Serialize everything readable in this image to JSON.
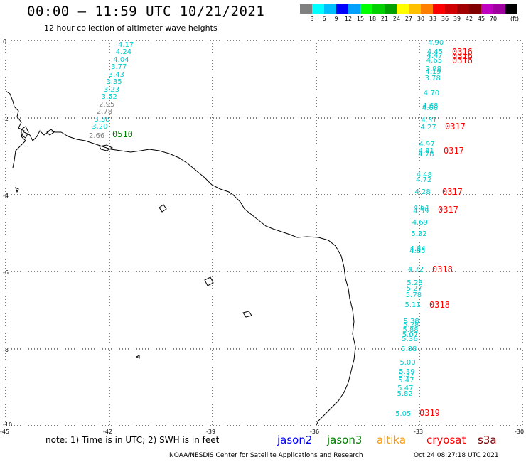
{
  "header": {
    "title": "00:00 – 11:59 UTC 10/21/2021",
    "subtitle": "12 hour collection of altimeter wave heights"
  },
  "legend": {
    "unit": "(ft)",
    "colors": [
      "#808080",
      "#00ffff",
      "#00bfff",
      "#0000ff",
      "#00a0ff",
      "#00ff00",
      "#00d000",
      "#00a000",
      "#ffff00",
      "#ffc000",
      "#ff8000",
      "#ff0000",
      "#d00000",
      "#a00000",
      "#800000",
      "#c000c0",
      "#a000a0",
      "#000000"
    ],
    "labels": [
      "3",
      "6",
      "9",
      "12",
      "15",
      "18",
      "21",
      "24",
      "27",
      "30",
      "33",
      "36",
      "39",
      "42",
      "45",
      "70"
    ]
  },
  "axes": {
    "lon_labels": [
      "-45",
      "-42",
      "-39",
      "-36",
      "-33",
      "-30"
    ],
    "lat_labels": [
      "0",
      "-2",
      "-4",
      "-6",
      "-8",
      "-10"
    ]
  },
  "observations": {
    "westTrack": [
      {
        "v": "4.17",
        "c": "#00cccc"
      },
      {
        "v": "4.24",
        "c": "#00cccc"
      },
      {
        "v": "4.04",
        "c": "#00cccc"
      },
      {
        "v": "3.77",
        "c": "#00cccc"
      },
      {
        "v": "3.43",
        "c": "#00cccc"
      },
      {
        "v": "3.35",
        "c": "#00cccc"
      },
      {
        "v": "3.23",
        "c": "#00cccc"
      },
      {
        "v": "3.52",
        "c": "#00cccc"
      },
      {
        "v": "2.95",
        "c": "#808080"
      },
      {
        "v": "2.78",
        "c": "#808080"
      },
      {
        "v": "3.38",
        "c": "#00cccc"
      },
      {
        "v": "3.20",
        "c": "#00cccc"
      },
      {
        "v": "2.66",
        "c": "#808080"
      }
    ],
    "eastTrack": [
      {
        "v": "4.90"
      },
      {
        "v": "4.45"
      },
      {
        "v": "4.47"
      },
      {
        "v": "4.65"
      },
      {
        "v": "3.98"
      },
      {
        "v": "4.19"
      },
      {
        "v": "3.78"
      },
      {
        "v": "4.70"
      },
      {
        "v": "4.68"
      },
      {
        "v": "4.66"
      },
      {
        "v": "4.31"
      },
      {
        "v": "4.27"
      },
      {
        "v": "4.97"
      },
      {
        "v": "4.81"
      },
      {
        "v": "4.78"
      },
      {
        "v": "4.48"
      },
      {
        "v": "4.72"
      },
      {
        "v": "4.28"
      },
      {
        "v": "4.64"
      },
      {
        "v": "4.59"
      },
      {
        "v": "4.69"
      },
      {
        "v": "5.32"
      },
      {
        "v": "4.84"
      },
      {
        "v": "4.85"
      },
      {
        "v": "4.72"
      },
      {
        "v": "5.28"
      },
      {
        "v": "5.27"
      },
      {
        "v": "5.78"
      },
      {
        "v": "5.11"
      },
      {
        "v": "5.38"
      },
      {
        "v": "5.28"
      },
      {
        "v": "5.88"
      },
      {
        "v": "5.07"
      },
      {
        "v": "5.36"
      },
      {
        "v": "5.88"
      },
      {
        "v": "5.00"
      },
      {
        "v": "5.39"
      },
      {
        "v": "5.37"
      },
      {
        "v": "5.47"
      },
      {
        "v": "5.47"
      },
      {
        "v": "5.82"
      },
      {
        "v": "5.05"
      }
    ],
    "times": [
      {
        "t": "0510",
        "c": "#008000"
      },
      {
        "t": "0316",
        "c": "#ff0000"
      },
      {
        "t": "0316",
        "c": "#ff0000"
      },
      {
        "t": "0316",
        "c": "#ff0000"
      },
      {
        "t": "0317",
        "c": "#ff0000"
      },
      {
        "t": "0317",
        "c": "#ff0000"
      },
      {
        "t": "0317",
        "c": "#ff0000"
      },
      {
        "t": "0317",
        "c": "#ff0000"
      },
      {
        "t": "0318",
        "c": "#ff0000"
      },
      {
        "t": "0318",
        "c": "#ff0000"
      },
      {
        "t": "0319",
        "c": "#ff0000"
      }
    ]
  },
  "footer": {
    "note": "note: 1) Time is in UTC; 2) SWH is in feet",
    "satellites": [
      {
        "name": "jason2",
        "color": "#0000ff"
      },
      {
        "name": "jason3",
        "color": "#008000"
      },
      {
        "name": "altika",
        "color": "#ff9900"
      },
      {
        "name": "cryosat",
        "color": "#ff0000"
      },
      {
        "name": "s3a",
        "color": "#800000"
      }
    ],
    "credit": "NOAA/NESDIS Center for Satellite Applications and Research",
    "timestamp": "Oct 24 08:27:18 UTC 2021"
  }
}
